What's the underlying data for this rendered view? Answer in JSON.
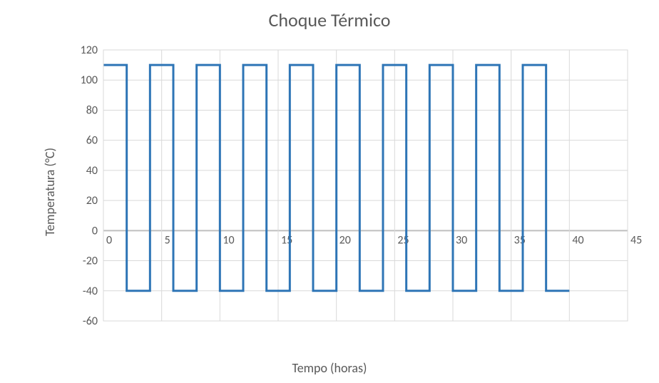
{
  "chart": {
    "type": "line",
    "title": "Choque Térmico",
    "title_fontsize": 26,
    "xlabel": "Tempo (horas)",
    "ylabel": "Temperatura (°C)",
    "label_fontsize": 18,
    "tick_fontsize": 16,
    "text_color": "#595959",
    "background_color": "#ffffff",
    "plot_border_color": "#d9d9d9",
    "grid_color": "#d9d9d9",
    "zero_line_color": "#bfbfbf",
    "line_color": "#2e75b6",
    "line_width": 3,
    "xlim": [
      0,
      45
    ],
    "ylim": [
      -60,
      120
    ],
    "xticks": [
      0,
      5,
      10,
      15,
      20,
      25,
      30,
      35,
      40,
      45
    ],
    "yticks": [
      -60,
      -40,
      -20,
      0,
      20,
      40,
      60,
      80,
      100,
      120
    ],
    "series": {
      "high": 110,
      "low": -40,
      "x_start": 0,
      "x_end": 40,
      "period_hours": 4,
      "high_duration_hours": 2,
      "data": [
        {
          "x": 0,
          "y": 110
        },
        {
          "x": 2,
          "y": 110
        },
        {
          "x": 2,
          "y": -40
        },
        {
          "x": 4,
          "y": -40
        },
        {
          "x": 4,
          "y": 110
        },
        {
          "x": 6,
          "y": 110
        },
        {
          "x": 6,
          "y": -40
        },
        {
          "x": 8,
          "y": -40
        },
        {
          "x": 8,
          "y": 110
        },
        {
          "x": 10,
          "y": 110
        },
        {
          "x": 10,
          "y": -40
        },
        {
          "x": 12,
          "y": -40
        },
        {
          "x": 12,
          "y": 110
        },
        {
          "x": 14,
          "y": 110
        },
        {
          "x": 14,
          "y": -40
        },
        {
          "x": 16,
          "y": -40
        },
        {
          "x": 16,
          "y": 110
        },
        {
          "x": 18,
          "y": 110
        },
        {
          "x": 18,
          "y": -40
        },
        {
          "x": 20,
          "y": -40
        },
        {
          "x": 20,
          "y": 110
        },
        {
          "x": 22,
          "y": 110
        },
        {
          "x": 22,
          "y": -40
        },
        {
          "x": 24,
          "y": -40
        },
        {
          "x": 24,
          "y": 110
        },
        {
          "x": 26,
          "y": 110
        },
        {
          "x": 26,
          "y": -40
        },
        {
          "x": 28,
          "y": -40
        },
        {
          "x": 28,
          "y": 110
        },
        {
          "x": 30,
          "y": 110
        },
        {
          "x": 30,
          "y": -40
        },
        {
          "x": 32,
          "y": -40
        },
        {
          "x": 32,
          "y": 110
        },
        {
          "x": 34,
          "y": 110
        },
        {
          "x": 34,
          "y": -40
        },
        {
          "x": 36,
          "y": -40
        },
        {
          "x": 36,
          "y": 110
        },
        {
          "x": 38,
          "y": 110
        },
        {
          "x": 38,
          "y": -40
        },
        {
          "x": 40,
          "y": -40
        }
      ]
    }
  }
}
